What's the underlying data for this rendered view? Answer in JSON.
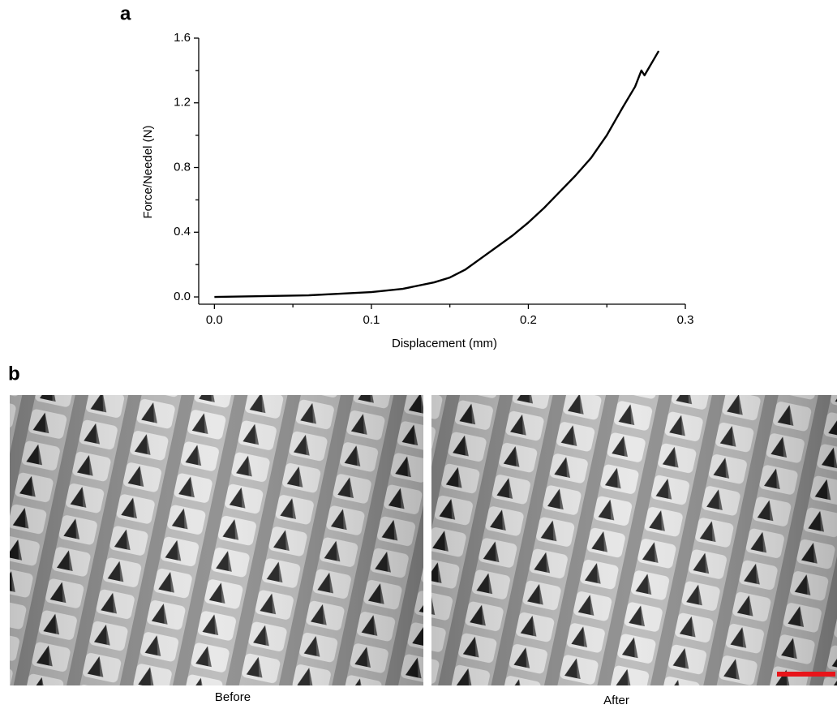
{
  "panel_labels": [
    "a",
    "b"
  ],
  "chart_data": {
    "type": "line",
    "x_label": "Displacement (mm)",
    "y_label": "Force/Needel (N)",
    "x": [
      0,
      0.03,
      0.06,
      0.08,
      0.1,
      0.12,
      0.14,
      0.15,
      0.16,
      0.17,
      0.18,
      0.19,
      0.2,
      0.21,
      0.22,
      0.23,
      0.24,
      0.245,
      0.25,
      0.26,
      0.268,
      0.272,
      0.274,
      0.277,
      0.28,
      0.283
    ],
    "series": [
      {
        "color": "#000000",
        "values": [
          0,
          0.005,
          0.01,
          0.02,
          0.03,
          0.05,
          0.09,
          0.12,
          0.17,
          0.24,
          0.31,
          0.38,
          0.46,
          0.55,
          0.65,
          0.75,
          0.86,
          0.93,
          1.0,
          1.17,
          1.3,
          1.4,
          1.37,
          1.42,
          1.47,
          1.52
        ]
      }
    ],
    "xlim": [
      -0.01,
      0.3
    ],
    "ylim": [
      -0.045,
      1.6
    ],
    "xticks": [
      {
        "value": 0,
        "label": "0.0"
      },
      0.1,
      0.2,
      0.3
    ],
    "yticks": [
      {
        "value": 0,
        "label": "0.0"
      },
      0.4,
      0.8,
      1.2,
      1.6
    ],
    "xminor": [
      0.05,
      0.15,
      0.25
    ],
    "yminor": [
      0.2,
      0.6,
      1.0,
      1.4
    ]
  },
  "images": [
    {
      "caption": "Before"
    },
    {
      "caption": "After"
    }
  ]
}
